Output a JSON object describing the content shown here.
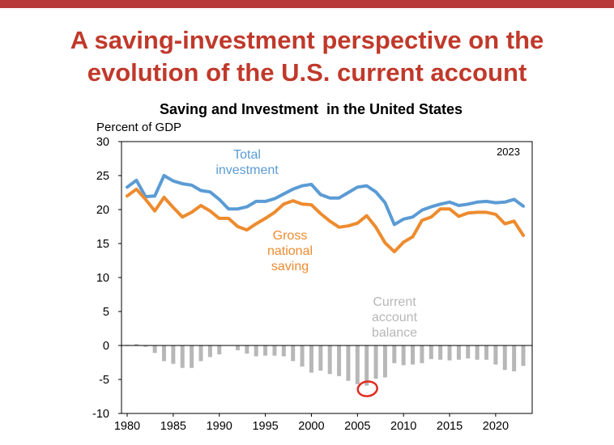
{
  "slide": {
    "title_line1": "A saving-investment perspective on the",
    "title_line2": "evolution of the U.S. current account"
  },
  "chart_data": {
    "type": "line",
    "title": "Saving and Investment  in the United States",
    "ylabel": "Percent of GDP",
    "year_tag": "2023",
    "xlim": [
      1980,
      2023
    ],
    "ylim": [
      -10,
      30
    ],
    "xticks": [
      1980,
      1985,
      1990,
      1995,
      2000,
      2005,
      2010,
      2015,
      2020
    ],
    "yticks": [
      30,
      25,
      20,
      15,
      10,
      5,
      0,
      -5,
      -10
    ],
    "grid": false,
    "x": [
      1980,
      1981,
      1982,
      1983,
      1984,
      1985,
      1986,
      1987,
      1988,
      1989,
      1990,
      1991,
      1992,
      1993,
      1994,
      1995,
      1996,
      1997,
      1998,
      1999,
      2000,
      2001,
      2002,
      2003,
      2004,
      2005,
      2006,
      2007,
      2008,
      2009,
      2010,
      2011,
      2012,
      2013,
      2014,
      2015,
      2016,
      2017,
      2018,
      2019,
      2020,
      2021,
      2022,
      2023
    ],
    "series": [
      {
        "name": "Total investment",
        "label_lines": [
          "Total",
          "investment"
        ],
        "color": "#5b9bd5",
        "kind": "line",
        "values": [
          23.3,
          24.3,
          21.9,
          22.0,
          25.0,
          24.2,
          23.8,
          23.6,
          22.8,
          22.6,
          21.5,
          20.1,
          20.1,
          20.4,
          21.2,
          21.2,
          21.6,
          22.3,
          23.0,
          23.5,
          23.7,
          22.2,
          21.7,
          21.7,
          22.5,
          23.3,
          23.5,
          22.6,
          21.0,
          17.8,
          18.6,
          18.9,
          19.9,
          20.4,
          20.8,
          21.1,
          20.6,
          20.8,
          21.1,
          21.2,
          21.0,
          21.1,
          21.5,
          20.5
        ]
      },
      {
        "name": "Gross national saving",
        "label_lines": [
          "Gross",
          "national",
          "saving"
        ],
        "color": "#ed8b2e",
        "kind": "line",
        "values": [
          22.0,
          23.0,
          21.5,
          19.8,
          21.8,
          20.3,
          18.9,
          19.6,
          20.6,
          19.8,
          18.7,
          18.7,
          17.5,
          17.0,
          17.9,
          18.7,
          19.6,
          20.8,
          21.3,
          20.8,
          20.7,
          19.4,
          18.3,
          17.4,
          17.6,
          18.0,
          19.1,
          17.4,
          15.1,
          13.8,
          15.2,
          16.0,
          18.4,
          18.9,
          20.1,
          20.1,
          19.0,
          19.5,
          19.6,
          19.6,
          19.3,
          17.9,
          18.3,
          16.2
        ]
      },
      {
        "name": "Current account balance",
        "label_lines": [
          "Current",
          "account",
          "balance"
        ],
        "color": "#b7b7b7",
        "kind": "bar",
        "values": [
          0.1,
          0.2,
          -0.2,
          -1.1,
          -2.3,
          -2.7,
          -3.3,
          -3.3,
          -2.3,
          -1.7,
          -1.3,
          0.0,
          -0.7,
          -1.2,
          -1.6,
          -1.5,
          -1.5,
          -1.6,
          -2.3,
          -3.1,
          -4.0,
          -3.7,
          -4.2,
          -4.5,
          -5.2,
          -5.7,
          -5.9,
          -4.9,
          -4.7,
          -2.6,
          -2.9,
          -2.8,
          -2.6,
          -2.0,
          -2.1,
          -2.2,
          -2.1,
          -1.9,
          -2.1,
          -2.1,
          -2.8,
          -3.6,
          -3.8,
          -3.0
        ]
      }
    ],
    "highlight": {
      "year": 2006,
      "color": "#e02b20"
    }
  }
}
